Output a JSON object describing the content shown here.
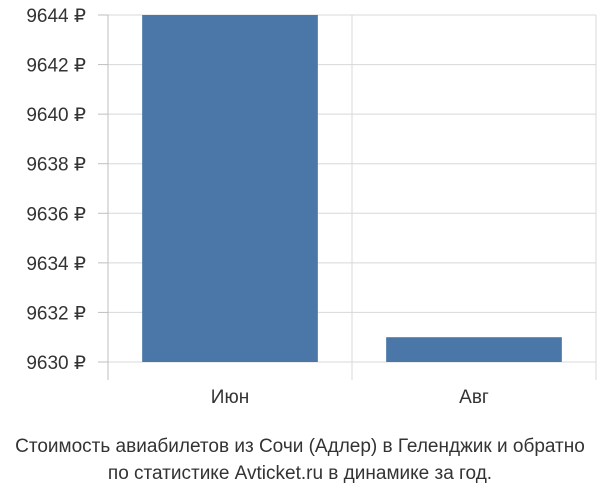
{
  "chart_data": {
    "type": "bar",
    "categories": [
      "Июн",
      "Авг"
    ],
    "values": [
      9644,
      9631
    ],
    "ylim": [
      9630,
      9644
    ],
    "yticks": [
      9630,
      9632,
      9634,
      9636,
      9638,
      9640,
      9642,
      9644
    ],
    "tick_suffix": " ₽",
    "grid": true,
    "bar_color": "#4a76a8",
    "grid_color": "#d8d8d8",
    "axis_color": "#bfbfbf"
  },
  "caption": {
    "line1": "Стоимость авиабилетов из Сочи (Адлер) в Геленджик и обратно",
    "line2": "по статистике Avticket.ru в динамике за год."
  }
}
